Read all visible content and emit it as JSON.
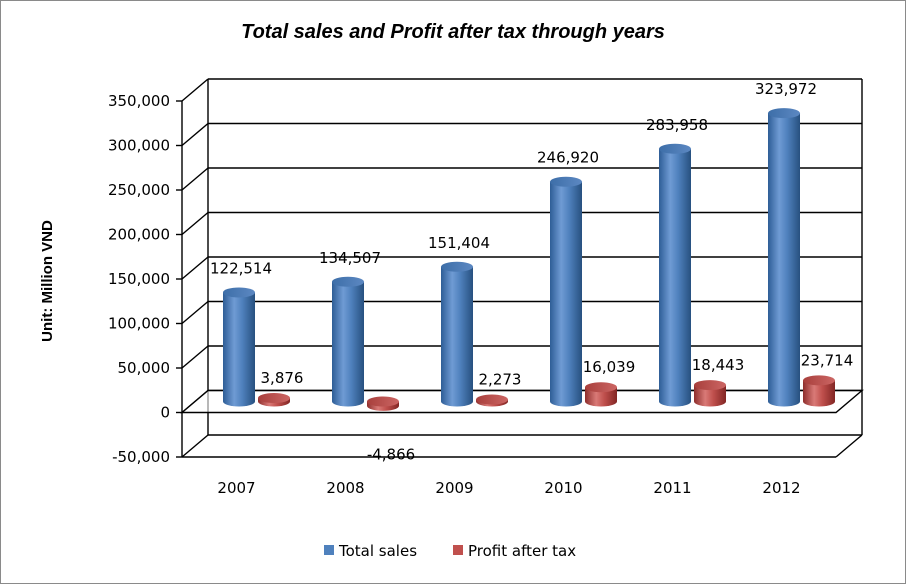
{
  "chart_data": {
    "type": "bar",
    "title": "Total sales and Profit after tax through years",
    "ylabel": "Unit: Million VND",
    "xlabel": "",
    "categories": [
      "2007",
      "2008",
      "2009",
      "2010",
      "2011",
      "2012"
    ],
    "ylim": [
      -50000,
      350000
    ],
    "yticks": [
      -50000,
      0,
      50000,
      100000,
      150000,
      200000,
      250000,
      300000,
      350000
    ],
    "ytick_labels": [
      "-50,000",
      "0",
      "50,000",
      "100,000",
      "150,000",
      "200,000",
      "250,000",
      "300,000",
      "350,000"
    ],
    "grid": true,
    "legend_position": "bottom",
    "series": [
      {
        "name": "Total sales",
        "color": "#4F81BD",
        "values": [
          122514,
          134507,
          151404,
          246920,
          283958,
          323972
        ],
        "labels": [
          "122,514",
          "134,507",
          "151,404",
          "246,920",
          "283,958",
          "323,972"
        ]
      },
      {
        "name": "Profit after tax",
        "color": "#C0504D",
        "values": [
          3876,
          -4866,
          2273,
          16039,
          18443,
          23714
        ],
        "labels": [
          "3,876",
          "-4,866",
          "2,273",
          "16,039",
          "18,443",
          "23,714"
        ]
      }
    ]
  }
}
